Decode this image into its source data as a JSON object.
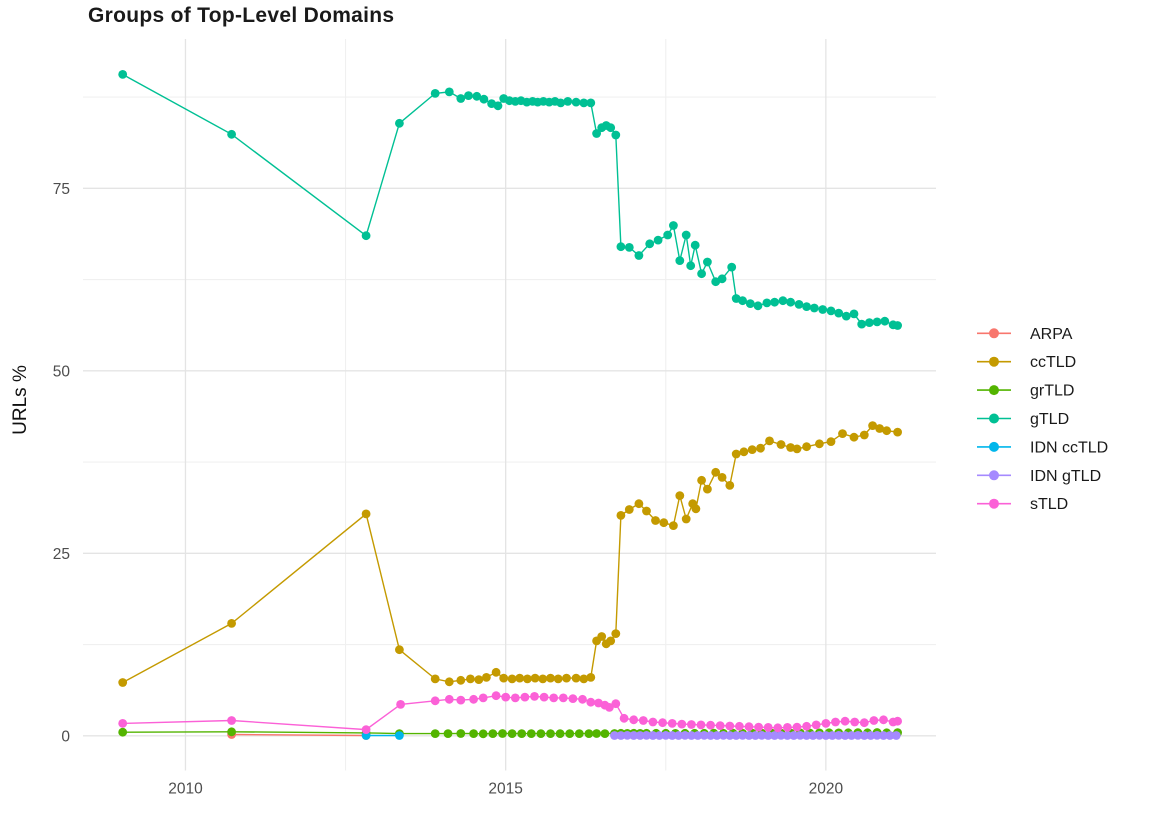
{
  "title": "Groups of Top-Level Domains",
  "axes": {
    "y_label": "URLs %",
    "y_tick_labels": [
      "0",
      "25",
      "50",
      "75"
    ],
    "x_tick_labels": [
      "2010",
      "2015",
      "2020"
    ]
  },
  "colors": {
    "grid_major": "#e4e4e4",
    "grid_minor": "#f0f0f0",
    "axis_text": "#4d4d4d",
    "title_text": "#1a1a1a"
  },
  "legend": {
    "position": "right",
    "items": [
      "ARPA",
      "ccTLD",
      "grTLD",
      "gTLD",
      "IDN ccTLD",
      "IDN gTLD",
      "sTLD"
    ]
  },
  "chart_data": {
    "type": "line",
    "title": "Groups of Top-Level Domains",
    "xlabel": "",
    "ylabel": "URLs %",
    "grid": true,
    "legend_position": "right",
    "xlim": [
      2008.4,
      2021.72
    ],
    "ylim": [
      -4.75,
      95.45
    ],
    "x_ticks": [
      2010,
      2015,
      2020
    ],
    "x_minor_ticks": [
      2012.5,
      2017.5
    ],
    "y_ticks": [
      0,
      25,
      50,
      75
    ],
    "y_minor_ticks": [
      12.5,
      37.5,
      62.5,
      87.5
    ],
    "series": [
      {
        "name": "ARPA",
        "color": "#F8766D",
        "points": [
          [
            2010.72,
            0.18
          ],
          [
            2012.82,
            0.05
          ]
        ]
      },
      {
        "name": "ccTLD",
        "color": "#C49A00",
        "points": [
          [
            2009.02,
            7.3
          ],
          [
            2010.72,
            15.4
          ],
          [
            2012.82,
            30.4
          ],
          [
            2013.34,
            11.8
          ],
          [
            2013.9,
            7.8
          ],
          [
            2014.12,
            7.4
          ],
          [
            2014.3,
            7.6
          ],
          [
            2014.45,
            7.8
          ],
          [
            2014.58,
            7.7
          ],
          [
            2014.7,
            8.0
          ],
          [
            2014.85,
            8.7
          ],
          [
            2014.97,
            7.9
          ],
          [
            2015.1,
            7.8
          ],
          [
            2015.22,
            7.9
          ],
          [
            2015.34,
            7.8
          ],
          [
            2015.46,
            7.9
          ],
          [
            2015.58,
            7.8
          ],
          [
            2015.7,
            7.9
          ],
          [
            2015.82,
            7.8
          ],
          [
            2015.95,
            7.9
          ],
          [
            2016.1,
            7.9
          ],
          [
            2016.22,
            7.8
          ],
          [
            2016.33,
            8.0
          ],
          [
            2016.42,
            13.0
          ],
          [
            2016.5,
            13.6
          ],
          [
            2016.57,
            12.6
          ],
          [
            2016.64,
            13.0
          ],
          [
            2016.72,
            14.0
          ],
          [
            2016.8,
            30.2
          ],
          [
            2016.93,
            31.0
          ],
          [
            2017.08,
            31.8
          ],
          [
            2017.2,
            30.8
          ],
          [
            2017.34,
            29.5
          ],
          [
            2017.47,
            29.2
          ],
          [
            2017.62,
            28.8
          ],
          [
            2017.72,
            32.9
          ],
          [
            2017.82,
            29.7
          ],
          [
            2017.92,
            31.8
          ],
          [
            2017.97,
            31.1
          ],
          [
            2018.06,
            35.0
          ],
          [
            2018.15,
            33.8
          ],
          [
            2018.28,
            36.1
          ],
          [
            2018.38,
            35.4
          ],
          [
            2018.5,
            34.3
          ],
          [
            2018.6,
            38.6
          ],
          [
            2018.72,
            38.9
          ],
          [
            2018.85,
            39.2
          ],
          [
            2018.98,
            39.4
          ],
          [
            2019.12,
            40.4
          ],
          [
            2019.3,
            39.9
          ],
          [
            2019.45,
            39.5
          ],
          [
            2019.55,
            39.3
          ],
          [
            2019.7,
            39.6
          ],
          [
            2019.9,
            40.0
          ],
          [
            2020.08,
            40.3
          ],
          [
            2020.26,
            41.4
          ],
          [
            2020.44,
            40.9
          ],
          [
            2020.6,
            41.2
          ],
          [
            2020.73,
            42.5
          ],
          [
            2020.84,
            42.1
          ],
          [
            2020.95,
            41.8
          ],
          [
            2021.12,
            41.6
          ]
        ]
      },
      {
        "name": "grTLD",
        "color": "#53B400",
        "points": [
          [
            2009.02,
            0.5
          ],
          [
            2010.72,
            0.55
          ],
          [
            2012.82,
            0.4
          ],
          [
            2013.34,
            0.3
          ],
          [
            2013.9,
            0.3
          ],
          [
            2014.1,
            0.3
          ],
          [
            2014.3,
            0.32
          ],
          [
            2014.5,
            0.3
          ],
          [
            2014.65,
            0.28
          ],
          [
            2014.8,
            0.3
          ],
          [
            2014.95,
            0.32
          ],
          [
            2015.1,
            0.3
          ],
          [
            2015.25,
            0.3
          ],
          [
            2015.4,
            0.31
          ],
          [
            2015.55,
            0.3
          ],
          [
            2015.7,
            0.3
          ],
          [
            2015.85,
            0.31
          ],
          [
            2016.0,
            0.3
          ],
          [
            2016.15,
            0.3
          ],
          [
            2016.3,
            0.3
          ],
          [
            2016.42,
            0.32
          ],
          [
            2016.55,
            0.3
          ],
          [
            2016.7,
            0.32
          ],
          [
            2016.8,
            0.35
          ],
          [
            2016.9,
            0.33
          ],
          [
            2017.0,
            0.35
          ],
          [
            2017.1,
            0.33
          ],
          [
            2017.2,
            0.35
          ],
          [
            2017.35,
            0.34
          ],
          [
            2017.5,
            0.35
          ],
          [
            2017.65,
            0.33
          ],
          [
            2017.8,
            0.35
          ],
          [
            2017.95,
            0.34
          ],
          [
            2018.1,
            0.35
          ],
          [
            2018.25,
            0.36
          ],
          [
            2018.4,
            0.35
          ],
          [
            2018.55,
            0.36
          ],
          [
            2018.7,
            0.35
          ],
          [
            2018.85,
            0.37
          ],
          [
            2019.0,
            0.36
          ],
          [
            2019.15,
            0.38
          ],
          [
            2019.3,
            0.37
          ],
          [
            2019.45,
            0.38
          ],
          [
            2019.6,
            0.4
          ],
          [
            2019.75,
            0.38
          ],
          [
            2019.9,
            0.4
          ],
          [
            2020.05,
            0.42
          ],
          [
            2020.2,
            0.4
          ],
          [
            2020.35,
            0.42
          ],
          [
            2020.5,
            0.44
          ],
          [
            2020.65,
            0.42
          ],
          [
            2020.8,
            0.45
          ],
          [
            2020.95,
            0.42
          ],
          [
            2021.12,
            0.44
          ]
        ]
      },
      {
        "name": "gTLD",
        "color": "#00C094",
        "points": [
          [
            2009.02,
            90.6
          ],
          [
            2010.72,
            82.4
          ],
          [
            2012.82,
            68.5
          ],
          [
            2013.34,
            83.9
          ],
          [
            2013.9,
            88.0
          ],
          [
            2014.12,
            88.2
          ],
          [
            2014.3,
            87.3
          ],
          [
            2014.42,
            87.7
          ],
          [
            2014.55,
            87.6
          ],
          [
            2014.66,
            87.2
          ],
          [
            2014.78,
            86.6
          ],
          [
            2014.88,
            86.3
          ],
          [
            2014.97,
            87.3
          ],
          [
            2015.06,
            87.0
          ],
          [
            2015.15,
            86.9
          ],
          [
            2015.24,
            87.0
          ],
          [
            2015.33,
            86.8
          ],
          [
            2015.42,
            86.9
          ],
          [
            2015.5,
            86.8
          ],
          [
            2015.59,
            86.9
          ],
          [
            2015.68,
            86.8
          ],
          [
            2015.77,
            86.9
          ],
          [
            2015.86,
            86.7
          ],
          [
            2015.97,
            86.9
          ],
          [
            2016.1,
            86.8
          ],
          [
            2016.22,
            86.7
          ],
          [
            2016.33,
            86.7
          ],
          [
            2016.42,
            82.5
          ],
          [
            2016.5,
            83.3
          ],
          [
            2016.57,
            83.6
          ],
          [
            2016.64,
            83.3
          ],
          [
            2016.72,
            82.3
          ],
          [
            2016.8,
            67.0
          ],
          [
            2016.93,
            66.9
          ],
          [
            2017.08,
            65.8
          ],
          [
            2017.25,
            67.4
          ],
          [
            2017.38,
            67.9
          ],
          [
            2017.53,
            68.6
          ],
          [
            2017.62,
            69.9
          ],
          [
            2017.72,
            65.1
          ],
          [
            2017.82,
            68.6
          ],
          [
            2017.89,
            64.4
          ],
          [
            2017.96,
            67.2
          ],
          [
            2018.06,
            63.3
          ],
          [
            2018.15,
            64.9
          ],
          [
            2018.28,
            62.2
          ],
          [
            2018.38,
            62.6
          ],
          [
            2018.53,
            64.2
          ],
          [
            2018.6,
            59.9
          ],
          [
            2018.7,
            59.6
          ],
          [
            2018.82,
            59.2
          ],
          [
            2018.94,
            58.9
          ],
          [
            2019.08,
            59.3
          ],
          [
            2019.2,
            59.4
          ],
          [
            2019.33,
            59.6
          ],
          [
            2019.45,
            59.4
          ],
          [
            2019.58,
            59.1
          ],
          [
            2019.7,
            58.8
          ],
          [
            2019.82,
            58.6
          ],
          [
            2019.95,
            58.4
          ],
          [
            2020.08,
            58.2
          ],
          [
            2020.2,
            57.9
          ],
          [
            2020.32,
            57.5
          ],
          [
            2020.44,
            57.8
          ],
          [
            2020.56,
            56.4
          ],
          [
            2020.68,
            56.6
          ],
          [
            2020.8,
            56.7
          ],
          [
            2020.92,
            56.8
          ],
          [
            2021.05,
            56.3
          ],
          [
            2021.12,
            56.2
          ]
        ]
      },
      {
        "name": "IDN ccTLD",
        "color": "#00B6EB",
        "points": [
          [
            2012.82,
            0.05
          ],
          [
            2013.34,
            0.04
          ]
        ]
      },
      {
        "name": "IDN gTLD",
        "color": "#A58AFF",
        "points": [
          [
            2016.7,
            0.05
          ],
          [
            2016.8,
            0.04
          ],
          [
            2016.9,
            0.06
          ],
          [
            2017.0,
            0.05
          ],
          [
            2017.1,
            0.04
          ],
          [
            2017.2,
            0.06
          ],
          [
            2017.3,
            0.05
          ],
          [
            2017.4,
            0.04
          ],
          [
            2017.5,
            0.06
          ],
          [
            2017.6,
            0.05
          ],
          [
            2017.7,
            0.04
          ],
          [
            2017.8,
            0.06
          ],
          [
            2017.9,
            0.05
          ],
          [
            2018.0,
            0.04
          ],
          [
            2018.1,
            0.06
          ],
          [
            2018.2,
            0.05
          ],
          [
            2018.3,
            0.04
          ],
          [
            2018.4,
            0.06
          ],
          [
            2018.5,
            0.05
          ],
          [
            2018.6,
            0.04
          ],
          [
            2018.7,
            0.06
          ],
          [
            2018.8,
            0.05
          ],
          [
            2018.9,
            0.04
          ],
          [
            2019.0,
            0.06
          ],
          [
            2019.1,
            0.05
          ],
          [
            2019.2,
            0.04
          ],
          [
            2019.3,
            0.06
          ],
          [
            2019.4,
            0.05
          ],
          [
            2019.5,
            0.04
          ],
          [
            2019.6,
            0.06
          ],
          [
            2019.7,
            0.05
          ],
          [
            2019.8,
            0.04
          ],
          [
            2019.9,
            0.06
          ],
          [
            2020.0,
            0.05
          ],
          [
            2020.1,
            0.04
          ],
          [
            2020.2,
            0.06
          ],
          [
            2020.3,
            0.05
          ],
          [
            2020.4,
            0.04
          ],
          [
            2020.5,
            0.06
          ],
          [
            2020.6,
            0.05
          ],
          [
            2020.7,
            0.04
          ],
          [
            2020.8,
            0.06
          ],
          [
            2020.9,
            0.05
          ],
          [
            2021.0,
            0.04
          ],
          [
            2021.1,
            0.05
          ]
        ]
      },
      {
        "name": "sTLD",
        "color": "#FB61D7",
        "points": [
          [
            2009.02,
            1.7
          ],
          [
            2010.72,
            2.1
          ],
          [
            2012.82,
            0.85
          ],
          [
            2013.36,
            4.3
          ],
          [
            2013.9,
            4.8
          ],
          [
            2014.12,
            5.0
          ],
          [
            2014.3,
            4.9
          ],
          [
            2014.5,
            5.0
          ],
          [
            2014.65,
            5.2
          ],
          [
            2014.85,
            5.5
          ],
          [
            2015.0,
            5.3
          ],
          [
            2015.15,
            5.2
          ],
          [
            2015.3,
            5.3
          ],
          [
            2015.45,
            5.4
          ],
          [
            2015.6,
            5.3
          ],
          [
            2015.75,
            5.2
          ],
          [
            2015.9,
            5.2
          ],
          [
            2016.05,
            5.1
          ],
          [
            2016.2,
            5.0
          ],
          [
            2016.33,
            4.6
          ],
          [
            2016.45,
            4.5
          ],
          [
            2016.55,
            4.2
          ],
          [
            2016.62,
            3.9
          ],
          [
            2016.72,
            4.4
          ],
          [
            2016.85,
            2.4
          ],
          [
            2017.0,
            2.2
          ],
          [
            2017.15,
            2.1
          ],
          [
            2017.3,
            1.9
          ],
          [
            2017.45,
            1.8
          ],
          [
            2017.6,
            1.7
          ],
          [
            2017.75,
            1.6
          ],
          [
            2017.9,
            1.55
          ],
          [
            2018.05,
            1.5
          ],
          [
            2018.2,
            1.45
          ],
          [
            2018.35,
            1.4
          ],
          [
            2018.5,
            1.35
          ],
          [
            2018.65,
            1.3
          ],
          [
            2018.8,
            1.25
          ],
          [
            2018.95,
            1.2
          ],
          [
            2019.1,
            1.15
          ],
          [
            2019.25,
            1.1
          ],
          [
            2019.4,
            1.15
          ],
          [
            2019.55,
            1.2
          ],
          [
            2019.7,
            1.3
          ],
          [
            2019.85,
            1.5
          ],
          [
            2020.0,
            1.7
          ],
          [
            2020.15,
            1.9
          ],
          [
            2020.3,
            2.0
          ],
          [
            2020.45,
            1.9
          ],
          [
            2020.6,
            1.8
          ],
          [
            2020.75,
            2.1
          ],
          [
            2020.9,
            2.2
          ],
          [
            2021.05,
            1.9
          ],
          [
            2021.12,
            2.0
          ]
        ]
      }
    ]
  }
}
